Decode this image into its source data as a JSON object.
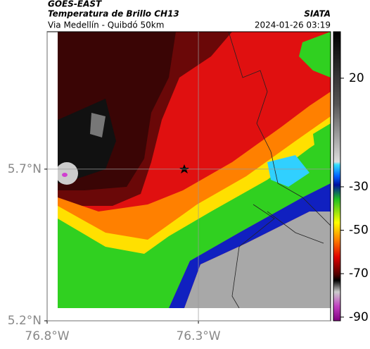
{
  "header": {
    "title": "GOES-EAST",
    "subtitle": "Temperatura de Brillo CH13",
    "location": "Via Medellín - Quibdó 50km",
    "source": "SIATA",
    "datetime": "2024-01-26 03:19"
  },
  "map": {
    "xlim": [
      -76.8,
      -75.863
    ],
    "ylim": [
      5.2,
      6.153
    ],
    "xticks": [
      {
        "value": -76.8,
        "label": "76.8°W"
      },
      {
        "value": -76.3,
        "label": "76.3°W"
      }
    ],
    "yticks": [
      {
        "value": 5.2,
        "label": "5.2°N"
      },
      {
        "value": 5.7,
        "label": "5.7°N"
      }
    ],
    "grid": true
  },
  "colorbar": {
    "lim": [
      -91.7,
      41.4
    ],
    "ticks": [
      20,
      -30,
      -50,
      -70,
      -90
    ]
  }
}
